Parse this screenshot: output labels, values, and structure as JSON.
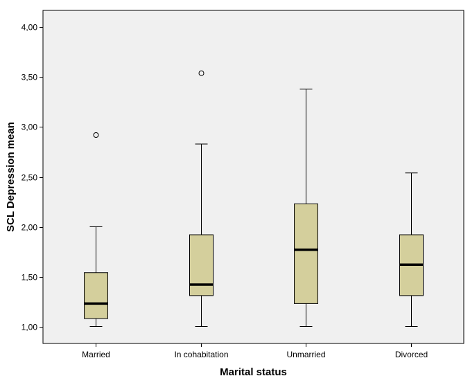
{
  "chart_data": {
    "type": "boxplot",
    "xlabel": "Marital status",
    "ylabel": "SCL Depression mean",
    "ylim": [
      0.83,
      4.17
    ],
    "yticks": [
      1.0,
      1.5,
      2.0,
      2.5,
      3.0,
      3.5,
      4.0
    ],
    "ytick_labels": [
      "1,00",
      "1,50",
      "2,00",
      "2,50",
      "3,00",
      "3,50",
      "4,00"
    ],
    "categories": [
      "Married",
      "In cohabitation",
      "Unmarried",
      "Divorced"
    ],
    "boxes": [
      {
        "whisker_low": 1.0,
        "q1": 1.08,
        "median": 1.23,
        "q3": 1.54,
        "whisker_high": 2.0,
        "outliers": [
          2.92
        ]
      },
      {
        "whisker_low": 1.0,
        "q1": 1.31,
        "median": 1.42,
        "q3": 1.92,
        "whisker_high": 2.83,
        "outliers": [
          3.54
        ]
      },
      {
        "whisker_low": 1.0,
        "q1": 1.23,
        "median": 1.77,
        "q3": 2.23,
        "whisker_high": 3.38,
        "outliers": []
      },
      {
        "whisker_low": 1.0,
        "q1": 1.31,
        "median": 1.62,
        "q3": 1.92,
        "whisker_high": 2.54,
        "outliers": []
      }
    ],
    "grid": false,
    "colors": {
      "plot_background": "#f0f0f0",
      "box_fill": "#d4cf9c",
      "stroke": "#000000"
    }
  }
}
